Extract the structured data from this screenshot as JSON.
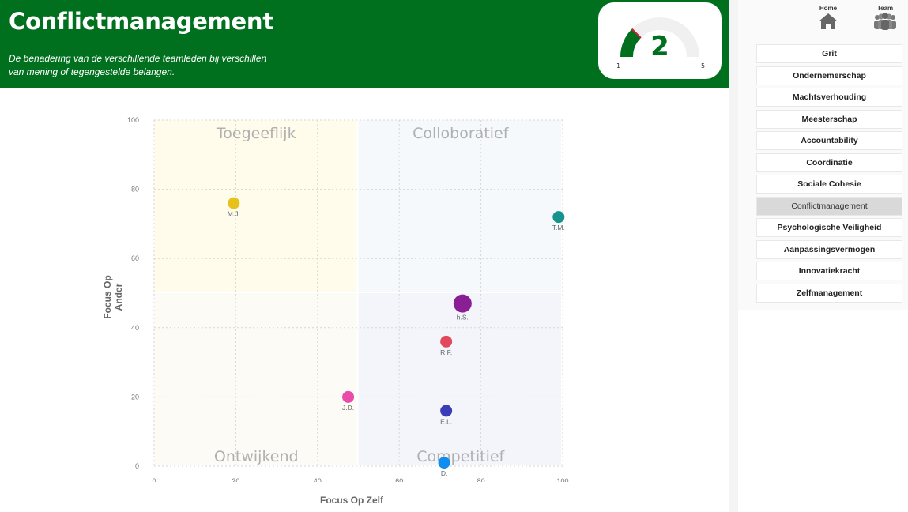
{
  "header": {
    "title": "Conflictmanagement",
    "subtitle": "De benadering van de verschillende teamleden bij verschillen van mening of tegengestelde belangen."
  },
  "gauge": {
    "value": 2,
    "min": 1,
    "max": 5,
    "value_label": "2",
    "min_label": "1",
    "max_label": "5",
    "color": "#00701f"
  },
  "nav": {
    "home_label": "Home",
    "team_label": "Team",
    "items": [
      {
        "label": "Grit",
        "active": false
      },
      {
        "label": "Ondernemerschap",
        "active": false
      },
      {
        "label": "Machtsverhouding",
        "active": false
      },
      {
        "label": "Meesterschap",
        "active": false
      },
      {
        "label": "Accountability",
        "active": false
      },
      {
        "label": "Coordinatie",
        "active": false
      },
      {
        "label": "Sociale Cohesie",
        "active": false
      },
      {
        "label": "Conflictmanagement",
        "active": true
      },
      {
        "label": "Psychologische Veiligheid",
        "active": false
      },
      {
        "label": "Aanpassingsvermogen",
        "active": false
      },
      {
        "label": "Innovatiekracht",
        "active": false
      },
      {
        "label": "Zelfmanagement",
        "active": false
      }
    ]
  },
  "chart_data": {
    "type": "scatter",
    "xlabel": "Focus Op Zelf",
    "ylabel": "Focus Op Ander",
    "xlim": [
      0,
      100
    ],
    "ylim": [
      0,
      100
    ],
    "xticks": [
      0,
      20,
      40,
      60,
      80,
      100
    ],
    "yticks": [
      0,
      20,
      40,
      60,
      80,
      100
    ],
    "grid": true,
    "quadrants": [
      {
        "label": "Toegeeflijk",
        "x": [
          0,
          50
        ],
        "y": [
          50,
          100
        ],
        "color": "#fffcec"
      },
      {
        "label": "Colloboratief",
        "x": [
          50,
          100
        ],
        "y": [
          50,
          100
        ],
        "color": "#f6f9fc"
      },
      {
        "label": "Ontwijkend",
        "x": [
          0,
          50
        ],
        "y": [
          0,
          50
        ],
        "color": "#fcfbf6"
      },
      {
        "label": "Competitief",
        "x": [
          50,
          100
        ],
        "y": [
          0,
          50
        ],
        "color": "#f3f5fa"
      }
    ],
    "points": [
      {
        "name": "M.J.",
        "x": 19.5,
        "y": 76,
        "color": "#e8c21c",
        "size": "medium"
      },
      {
        "name": "T.M.",
        "x": 99,
        "y": 72,
        "color": "#15938c",
        "size": "medium"
      },
      {
        "name": "h.S.",
        "x": 75.5,
        "y": 47,
        "color": "#8a1f95",
        "size": "large"
      },
      {
        "name": "R.F.",
        "x": 71.5,
        "y": 36,
        "color": "#e2495c",
        "size": "medium"
      },
      {
        "name": "J.D.",
        "x": 47.5,
        "y": 20,
        "color": "#ea4aaa",
        "size": "medium"
      },
      {
        "name": "E.L.",
        "x": 71.5,
        "y": 16,
        "color": "#3a3db5",
        "size": "medium"
      },
      {
        "name": "D.",
        "x": 71,
        "y": 1,
        "color": "#118df0",
        "size": "medium"
      }
    ]
  }
}
